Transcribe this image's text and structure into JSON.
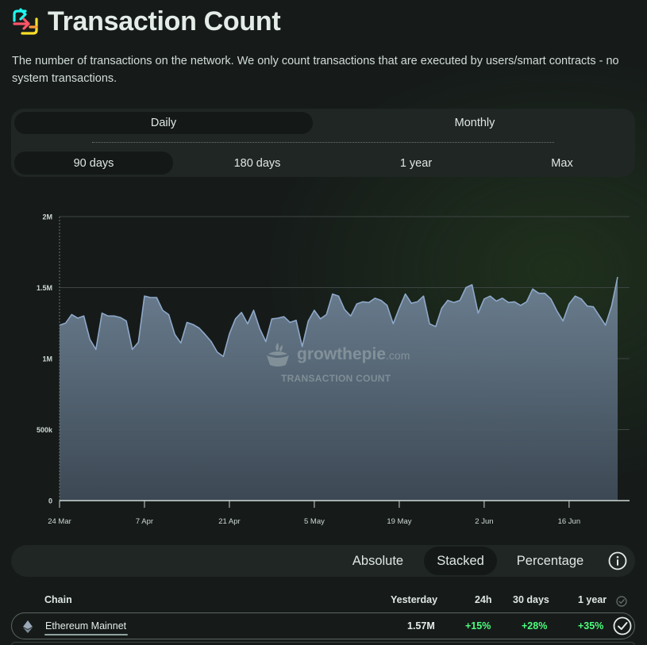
{
  "header": {
    "title": "Transaction Count",
    "logo_icon": "arrows-logo-icon"
  },
  "description": "The number of transactions on the network. We only count transactions that are executed by users/smart contracts - no system transactions.",
  "interval_tabs": [
    {
      "label": "Daily",
      "active": true
    },
    {
      "label": "Monthly",
      "active": false
    }
  ],
  "range_tabs": [
    {
      "label": "90 days",
      "active": true
    },
    {
      "label": "180 days",
      "active": false
    },
    {
      "label": "1 year",
      "active": false
    },
    {
      "label": "Max",
      "active": false
    }
  ],
  "watermark": {
    "brand": "growthepie",
    "suffix": ".com",
    "subtitle": "TRANSACTION COUNT"
  },
  "chart_data": {
    "type": "area",
    "y_ticks": [
      "0",
      "500k",
      "1M",
      "1.5M",
      "2M"
    ],
    "x_ticks": [
      "24 Mar",
      "7 Apr",
      "21 Apr",
      "5 May",
      "19 May",
      "2 Jun",
      "16 Jun"
    ],
    "ylim": [
      0,
      2000000
    ],
    "grid": true,
    "series_color": "#8ea8c8",
    "values": [
      1235000,
      1250000,
      1310000,
      1285000,
      1300000,
      1135000,
      1065000,
      1320000,
      1300000,
      1300000,
      1290000,
      1265000,
      1065000,
      1115000,
      1440000,
      1430000,
      1430000,
      1340000,
      1310000,
      1170000,
      1110000,
      1255000,
      1240000,
      1215000,
      1170000,
      1120000,
      1045000,
      1015000,
      1175000,
      1280000,
      1325000,
      1245000,
      1340000,
      1210000,
      1120000,
      1280000,
      1285000,
      1295000,
      1255000,
      1270000,
      1085000,
      1265000,
      1340000,
      1280000,
      1310000,
      1455000,
      1440000,
      1345000,
      1300000,
      1385000,
      1400000,
      1395000,
      1425000,
      1410000,
      1375000,
      1245000,
      1355000,
      1455000,
      1390000,
      1400000,
      1440000,
      1245000,
      1225000,
      1355000,
      1410000,
      1395000,
      1410000,
      1500000,
      1520000,
      1320000,
      1420000,
      1440000,
      1405000,
      1425000,
      1395000,
      1400000,
      1375000,
      1400000,
      1490000,
      1460000,
      1460000,
      1420000,
      1335000,
      1265000,
      1385000,
      1440000,
      1420000,
      1370000,
      1365000,
      1300000,
      1235000,
      1370000,
      1575000
    ]
  },
  "display_modes": [
    {
      "label": "Absolute",
      "active": false
    },
    {
      "label": "Stacked",
      "active": true
    },
    {
      "label": "Percentage",
      "active": false
    }
  ],
  "table": {
    "headers": {
      "chain": "Chain",
      "yesterday": "Yesterday",
      "d24h": "24h",
      "d30": "30 days",
      "y1": "1 year"
    },
    "rows": [
      {
        "chain": "Ethereum Mainnet",
        "yesterday": "1.57M",
        "d24h": "+15%",
        "d30": "+28%",
        "y1": "+35%",
        "selected": true
      }
    ]
  }
}
